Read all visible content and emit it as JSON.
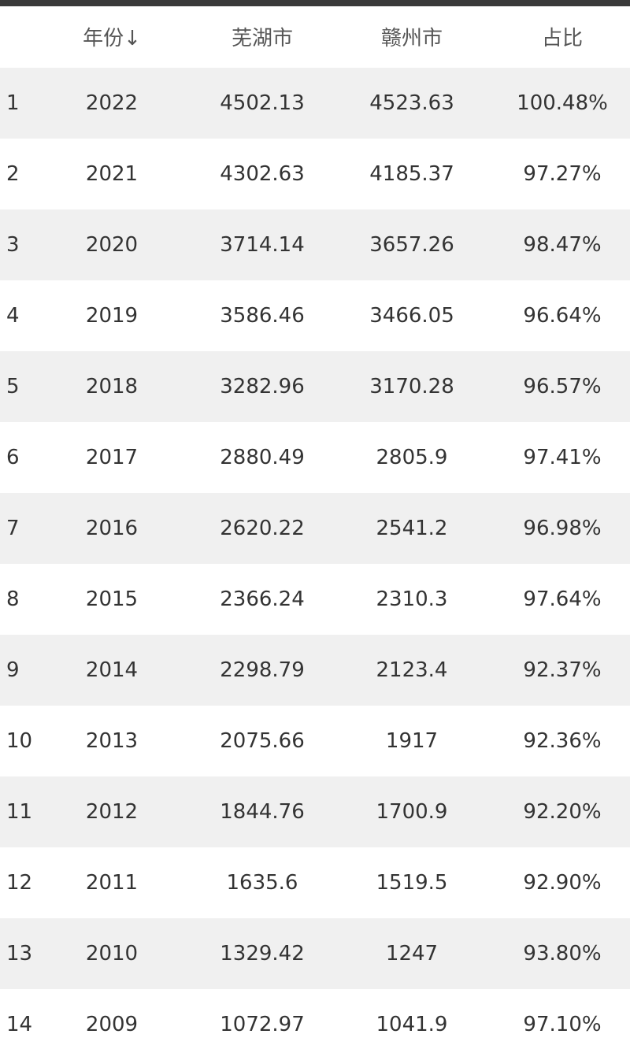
{
  "table": {
    "header": [
      "年份↓",
      "芜湖市",
      "赣州市",
      "占比"
    ],
    "rows": [
      [
        "1",
        "2022",
        "4502.13",
        "4523.63",
        "100.48%"
      ],
      [
        "2",
        "2021",
        "4302.63",
        "4185.37",
        "97.27%"
      ],
      [
        "3",
        "2020",
        "3714.14",
        "3657.26",
        "98.47%"
      ],
      [
        "4",
        "2019",
        "3586.46",
        "3466.05",
        "96.64%"
      ],
      [
        "5",
        "2018",
        "3282.96",
        "3170.28",
        "96.57%"
      ],
      [
        "6",
        "2017",
        "2880.49",
        "2805.9",
        "97.41%"
      ],
      [
        "7",
        "2016",
        "2620.22",
        "2541.2",
        "96.98%"
      ],
      [
        "8",
        "2015",
        "2366.24",
        "2310.3",
        "97.64%"
      ],
      [
        "9",
        "2014",
        "2298.79",
        "2123.4",
        "92.37%"
      ],
      [
        "10",
        "2013",
        "2075.66",
        "1917",
        "92.36%"
      ],
      [
        "11",
        "2012",
        "1844.76",
        "1700.9",
        "92.20%"
      ],
      [
        "12",
        "2011",
        "1635.6",
        "1519.5",
        "92.90%"
      ],
      [
        "13",
        "2010",
        "1329.42",
        "1247",
        "93.80%"
      ],
      [
        "14",
        "2009",
        "1072.97",
        "1041.9",
        "97.10%"
      ]
    ]
  }
}
